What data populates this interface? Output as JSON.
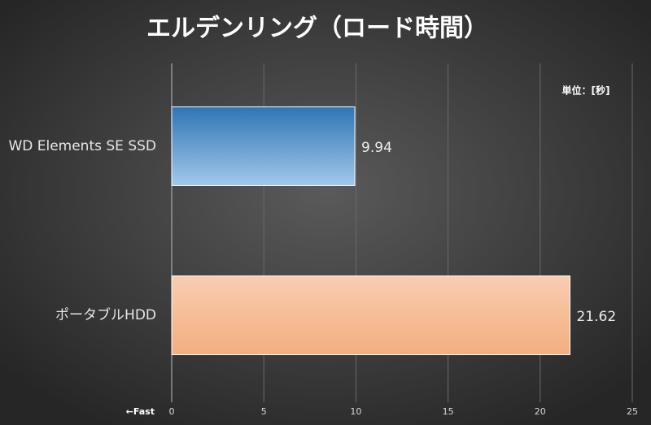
{
  "chart_data": {
    "type": "hbar",
    "title": "エルデンリング（ロード時間）",
    "categories": [
      "WD Elements SE SSD",
      "ポータブルHDD"
    ],
    "values": [
      9.94,
      21.62
    ],
    "colors": [
      [
        "#2e75b6",
        "#a3c8ea"
      ],
      [
        "#f9cdb0",
        "#f3ae80"
      ]
    ],
    "xlim": [
      0,
      25
    ],
    "xticks": [
      0,
      5,
      10,
      15,
      20,
      25
    ],
    "grid": true,
    "annotations": [
      "単位：[秒]",
      "←Fast"
    ]
  }
}
